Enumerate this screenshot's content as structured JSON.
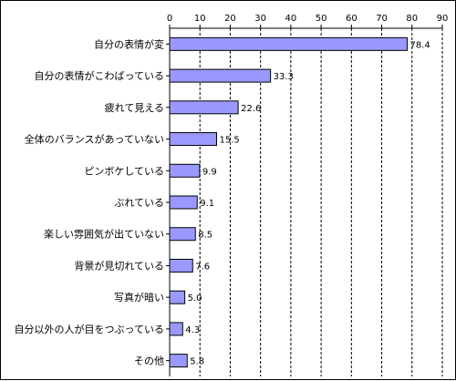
{
  "chart_data": {
    "type": "bar",
    "orientation": "horizontal",
    "categories": [
      "自分の表情が変",
      "自分の表情がこわばっている",
      "疲れて見える",
      "全体のバランスがあっていない",
      "ピンボケしている",
      "ぶれている",
      "楽しい雰囲気が出ていない",
      "背景が見切れている",
      "写真が暗い",
      "自分以外の人が目をつぶっている",
      "その他"
    ],
    "values": [
      78.4,
      33.3,
      22.6,
      15.5,
      9.9,
      9.1,
      8.5,
      7.6,
      5.0,
      4.3,
      5.8
    ],
    "value_labels": [
      "78.4",
      "33.3",
      "22.6",
      "15.5",
      "9.9",
      "9.1",
      "8.5",
      "7.6",
      "5.0",
      "4.3",
      "5.8"
    ],
    "xlim": [
      0,
      90
    ],
    "x_ticks": [
      "0",
      "10",
      "20",
      "30",
      "40",
      "50",
      "60",
      "70",
      "80",
      "90"
    ],
    "x_axis_position": "top",
    "grid": "vertical-dashed",
    "legend": "none",
    "title": "",
    "xlabel": "",
    "ylabel": "",
    "colors": {
      "bar_fill": "#9999ff",
      "bar_stroke": "#000000",
      "grid": "#000000",
      "background": "#ffffff"
    }
  }
}
